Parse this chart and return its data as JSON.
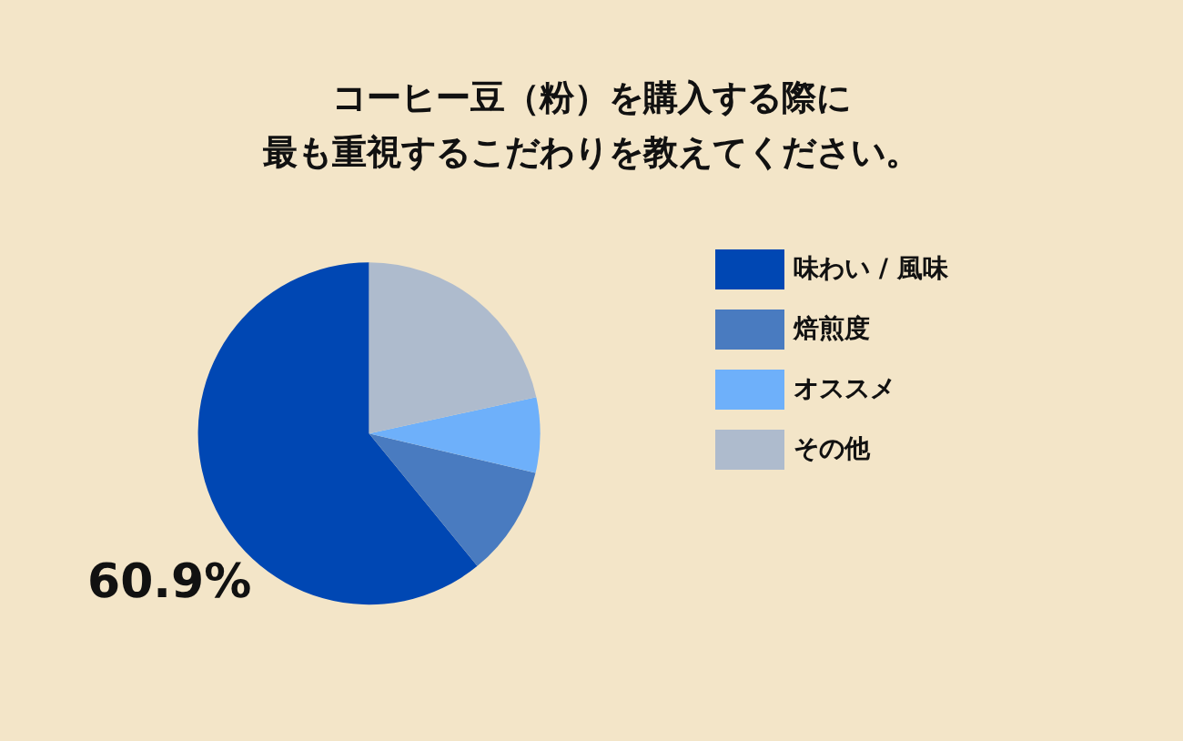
{
  "chart_data": {
    "type": "pie",
    "title": "コーヒー豆（粉）を購入する際に最も重視するこだわりを教えてください。",
    "categories": [
      "味わい / 風味",
      "焙煎度",
      "オススメ",
      "その他"
    ],
    "values": [
      60.9,
      10.4,
      7.1,
      21.6
    ],
    "colors": [
      "#0047b3",
      "#497bc0",
      "#6eb0fa",
      "#aebbcd"
    ],
    "value_labels": [
      "60.9%",
      null,
      null,
      null
    ],
    "legend": "right"
  }
}
